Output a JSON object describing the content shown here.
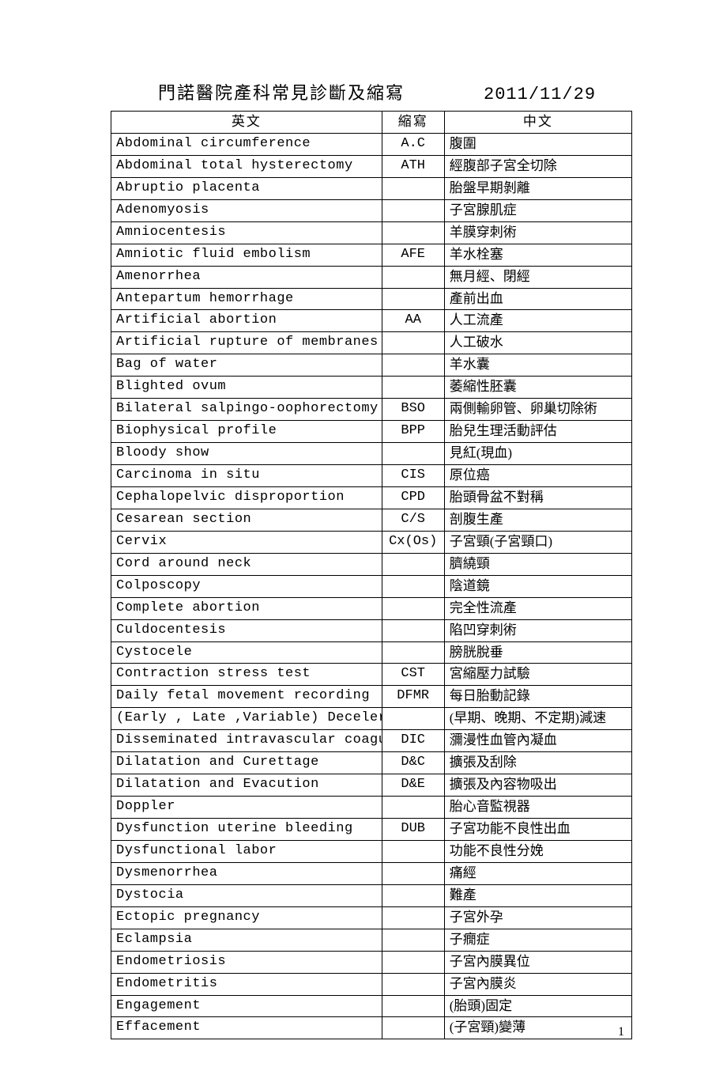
{
  "header": {
    "title": "門諾醫院產科常見診斷及縮寫",
    "date": "2011/11/29"
  },
  "table": {
    "columns": {
      "english": "英文",
      "abbrev": "縮寫",
      "chinese": "中文"
    },
    "col_widths_pct": [
      52,
      12,
      36
    ],
    "border_color": "#000000",
    "bg_color": "#ffffff",
    "text_color": "#000000",
    "font_size_pt": 13,
    "rows": [
      {
        "en": "Abdominal circumference",
        "ab": "A.C",
        "cn": "腹圍"
      },
      {
        "en": "Abdominal total hysterectomy",
        "ab": "ATH",
        "cn": "經腹部子宮全切除"
      },
      {
        "en": "Abruptio placenta",
        "ab": "",
        "cn": "胎盤早期剝離"
      },
      {
        "en": "Adenomyosis",
        "ab": "",
        "cn": "子宮腺肌症"
      },
      {
        "en": "Amniocentesis",
        "ab": "",
        "cn": "羊膜穿刺術"
      },
      {
        "en": "Amniotic fluid embolism",
        "ab": "AFE",
        "cn": "羊水栓塞"
      },
      {
        "en": "Amenorrhea",
        "ab": "",
        "cn": "無月經、閉經"
      },
      {
        "en": "Antepartum hemorrhage",
        "ab": "",
        "cn": "產前出血"
      },
      {
        "en": "Artificial abortion",
        "ab": "AA",
        "cn": "人工流產"
      },
      {
        "en": "Artificial rupture of membranes",
        "ab": "",
        "cn": "人工破水"
      },
      {
        "en": "Bag of water",
        "ab": "",
        "cn": "羊水囊"
      },
      {
        "en": "Blighted ovum",
        "ab": "",
        "cn": "萎縮性胚囊"
      },
      {
        "en": "Bilateral salpingo-oophorectomy",
        "ab": "BSO",
        "cn": "兩側輸卵管、卵巢切除術"
      },
      {
        "en": "Biophysical profile",
        "ab": "BPP",
        "cn": "胎兒生理活動評估"
      },
      {
        "en": "Bloody show",
        "ab": "",
        "cn": "見紅(現血)"
      },
      {
        "en": "Carcinoma in situ",
        "ab": "CIS",
        "cn": "原位癌"
      },
      {
        "en": "Cephalopelvic disproportion",
        "ab": "CPD",
        "cn": "胎頭骨盆不對稱"
      },
      {
        "en": "Cesarean section",
        "ab": "C/S",
        "cn": "剖腹生產"
      },
      {
        "en": "Cervix",
        "ab": "Cx(Os)",
        "cn": "子宮頸(子宮頸口)"
      },
      {
        "en": "Cord around neck",
        "ab": "",
        "cn": "臍繞頸"
      },
      {
        "en": "Colposcopy",
        "ab": "",
        "cn": "陰道鏡"
      },
      {
        "en": "Complete abortion",
        "ab": "",
        "cn": "完全性流產"
      },
      {
        "en": "Culdocentesis",
        "ab": "",
        "cn": "陷凹穿刺術"
      },
      {
        "en": "Cystocele",
        "ab": "",
        "cn": "膀胱脫垂"
      },
      {
        "en": "Contraction stress test",
        "ab": "CST",
        "cn": "宮縮壓力試驗"
      },
      {
        "en": "Daily fetal movement recording",
        "ab": "DFMR",
        "cn": "每日胎動記錄"
      },
      {
        "en": "(Early , Late ,Variable) Deceleration",
        "ab": "",
        "cn": "(早期、晚期、不定期)減速"
      },
      {
        "en": "Disseminated intravascular coagulation",
        "ab": "DIC",
        "cn": "瀰漫性血管內凝血"
      },
      {
        "en": "Dilatation and Curettage",
        "ab": "D&C",
        "cn": "擴張及刮除"
      },
      {
        "en": "Dilatation and Evacution",
        "ab": "D&E",
        "cn": "擴張及內容物吸出"
      },
      {
        "en": "Doppler",
        "ab": "",
        "cn": "胎心音監視器"
      },
      {
        "en": "Dysfunction uterine bleeding",
        "ab": "DUB",
        "cn": "子宮功能不良性出血"
      },
      {
        "en": "Dysfunctional labor",
        "ab": "",
        "cn": "功能不良性分娩"
      },
      {
        "en": "Dysmenorrhea",
        "ab": "",
        "cn": "痛經"
      },
      {
        "en": "Dystocia",
        "ab": "",
        "cn": "難產"
      },
      {
        "en": "Ectopic pregnancy",
        "ab": "",
        "cn": "子宮外孕"
      },
      {
        "en": "Eclampsia",
        "ab": "",
        "cn": "子癇症"
      },
      {
        "en": "Endometriosis",
        "ab": "",
        "cn": "子宮內膜異位"
      },
      {
        "en": "Endometritis",
        "ab": "",
        "cn": "子宮內膜炎"
      },
      {
        "en": "Engagement",
        "ab": "",
        "cn": "(胎頭)固定"
      },
      {
        "en": "Effacement",
        "ab": "",
        "cn": "(子宮頸)變薄"
      }
    ]
  },
  "page_number": "1"
}
